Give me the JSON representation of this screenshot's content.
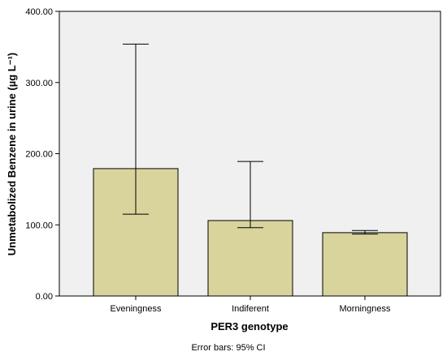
{
  "chart_data": {
    "type": "bar",
    "categories": [
      "Eveningness",
      "Indiferent",
      "Morningness"
    ],
    "values": [
      179,
      106,
      89
    ],
    "error_bars": [
      {
        "lower": 115,
        "upper": 354
      },
      {
        "lower": 96,
        "upper": 189
      },
      {
        "lower": 87,
        "upper": 92
      }
    ],
    "xlabel": "PER3 genotype",
    "ylabel": "Unmetabolized Benzene in urine (µg L⁻¹)",
    "ylim": [
      0,
      400
    ],
    "y_ticks": [
      "0.00",
      "100.00",
      "200.00",
      "300.00",
      "400.00"
    ],
    "footnote": "Error bars: 95% CI",
    "grid": false,
    "legend": "none",
    "colors": {
      "bar_fill": "#d8d49c",
      "bar_stroke": "#000000",
      "plot_background": "#f0f0f0",
      "axis": "#000000"
    }
  }
}
